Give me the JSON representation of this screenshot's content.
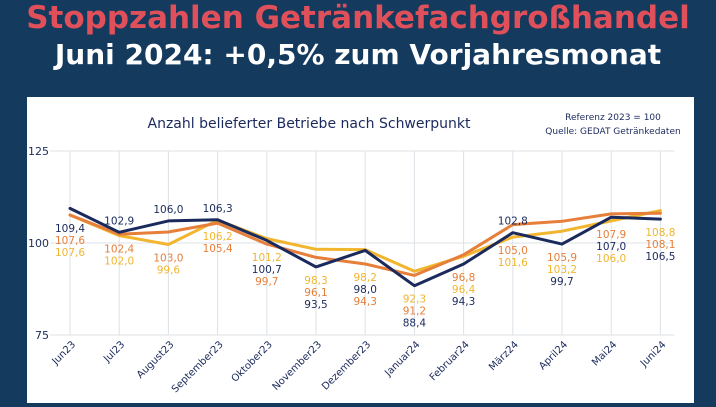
{
  "header": {
    "title_line1": "Stoppzahlen Getränkefachgroßhandel",
    "title_line2": "Juni 2024: +0,5% zum Vorjahresmonat",
    "title_color": "#e0505a"
  },
  "chart_data": {
    "type": "line",
    "title": "Anzahl belieferter Betriebe nach Schwerpunkt",
    "note_reference": "Referenz 2023 = 100",
    "note_source": "Quelle: GEDAT Getränkedaten",
    "categories": [
      "Jun23",
      "Jul23",
      "August23",
      "September23",
      "Oktober23",
      "November23",
      "Dezember23",
      "Januar24",
      "Februar24",
      "März24",
      "April24",
      "Mai24",
      "Juni24"
    ],
    "ylim": [
      75,
      125
    ],
    "yticks": [
      75,
      100,
      125
    ],
    "series": [
      {
        "name": "navy",
        "color": "#1b2a5c",
        "values": [
          109.4,
          102.9,
          106.0,
          106.3,
          100.7,
          93.5,
          98.0,
          88.4,
          94.3,
          102.8,
          99.7,
          107.0,
          106.5
        ],
        "labels": [
          "109,4",
          "102,9",
          "106,0",
          "106,3",
          "100,7",
          "93,5",
          "98,0",
          "88,4",
          "94,3",
          "102,8",
          "99,7",
          "107,0",
          "106,5"
        ]
      },
      {
        "name": "orange",
        "color": "#e57f3a",
        "values": [
          107.6,
          102.4,
          103.0,
          105.4,
          99.7,
          96.1,
          94.3,
          91.2,
          96.8,
          105.0,
          105.9,
          107.9,
          108.1
        ],
        "labels": [
          "107,6",
          "102,4",
          "103,0",
          "105,4",
          "99,7",
          "96,1",
          "94,3",
          "91,2",
          "96,8",
          "105,0",
          "105,9",
          "107,9",
          "108,1"
        ]
      },
      {
        "name": "yellow",
        "color": "#f2b52e",
        "values": [
          107.6,
          102.0,
          99.6,
          106.2,
          101.2,
          98.3,
          98.2,
          92.3,
          96.4,
          101.6,
          103.2,
          106.0,
          108.8
        ],
        "labels": [
          "107,6",
          "102,0",
          "99,6",
          "106,2",
          "101,2",
          "98,3",
          "98,2",
          "92,3",
          "96,4",
          "101,6",
          "103,2",
          "106,0",
          "108,8"
        ]
      }
    ]
  }
}
